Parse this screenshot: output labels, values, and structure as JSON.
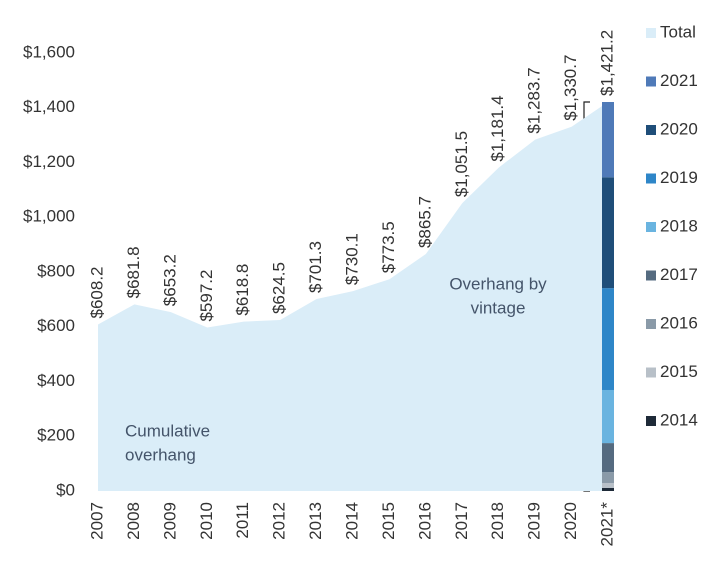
{
  "chart_data": {
    "type": "area",
    "categories": [
      "2007",
      "2008",
      "2009",
      "2010",
      "2011",
      "2012",
      "2013",
      "2014",
      "2015",
      "2016",
      "2017",
      "2018",
      "2019",
      "2020",
      "2021*"
    ],
    "area": {
      "name": "Total",
      "color": "#daedf8",
      "values": [
        608.2,
        681.8,
        653.2,
        597.2,
        618.8,
        624.5,
        701.3,
        730.1,
        773.5,
        865.7,
        1051.5,
        1181.4,
        1283.7,
        1330.7,
        1421.2
      ],
      "value_labels": [
        "$608.2",
        "$681.8",
        "$653.2",
        "$597.2",
        "$618.8",
        "$624.5",
        "$701.3",
        "$730.1",
        "$773.5",
        "$865.7",
        "$1,051.5",
        "$1,181.4",
        "$1,283.7",
        "$1,330.7",
        "$1,421.2"
      ]
    },
    "bar_series": [
      {
        "name": "2021",
        "color": "#4f7ab8",
        "value": 275
      },
      {
        "name": "2020",
        "color": "#1f4e79",
        "value": 405
      },
      {
        "name": "2019",
        "color": "#2e86c8",
        "value": 372
      },
      {
        "name": "2018",
        "color": "#6ab4e0",
        "value": 194
      },
      {
        "name": "2017",
        "color": "#556b80",
        "value": 106
      },
      {
        "name": "2016",
        "color": "#8a9aa8",
        "value": 40
      },
      {
        "name": "2015",
        "color": "#b8c0c8",
        "value": 18
      },
      {
        "name": "2014",
        "color": "#1e2a38",
        "value": 11
      }
    ],
    "annotations": [
      {
        "lines": [
          "Overhang by",
          "vintage"
        ]
      },
      {
        "lines": [
          "Cumulative",
          "overhang"
        ]
      }
    ],
    "ylim": [
      0,
      1600
    ],
    "yticks": [
      {
        "value": 0,
        "label": "$0"
      },
      {
        "value": 200,
        "label": "$200"
      },
      {
        "value": 400,
        "label": "$400"
      },
      {
        "value": 600,
        "label": "$600"
      },
      {
        "value": 800,
        "label": "$800"
      },
      {
        "value": 1000,
        "label": "$1,000"
      },
      {
        "value": 1200,
        "label": "$1,200"
      },
      {
        "value": 1400,
        "label": "$1,400"
      },
      {
        "value": 1600,
        "label": "$1,600"
      }
    ],
    "grid": false
  }
}
